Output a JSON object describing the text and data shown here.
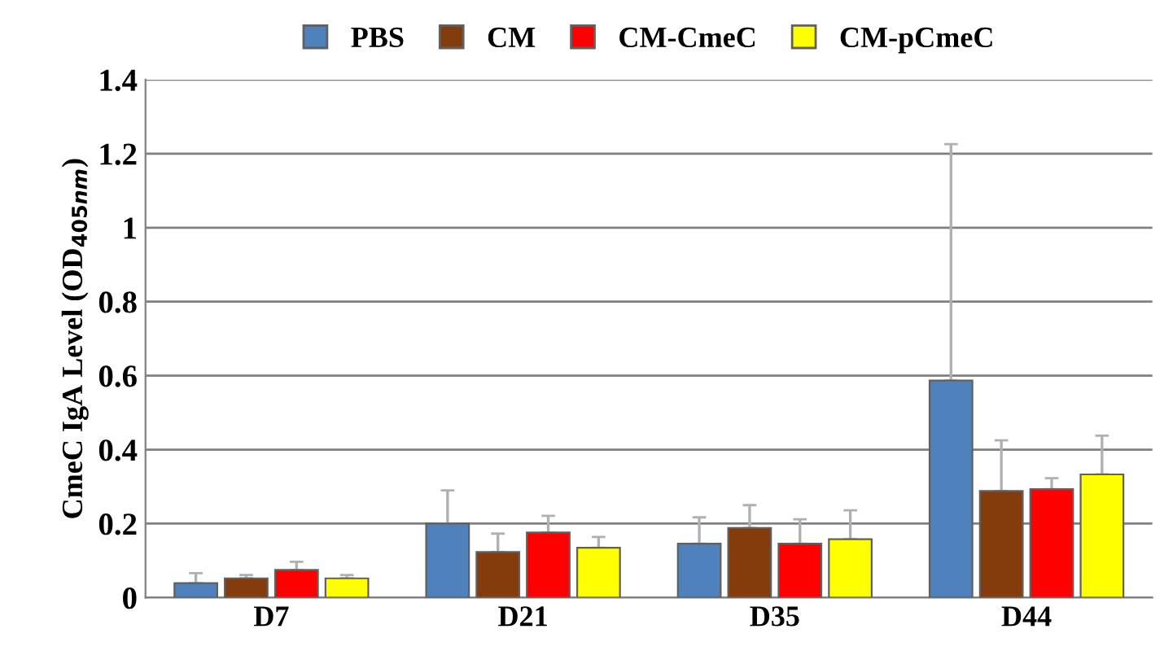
{
  "chart_data": {
    "type": "bar",
    "ylabel": "CmeC IgA Level (OD$_{405nm}$)",
    "categories": [
      "D7",
      "D21",
      "D35",
      "D44"
    ],
    "series": [
      {
        "name": "PBS",
        "color": "#4f81bd",
        "values": [
          0.039,
          0.2,
          0.146,
          0.587
        ],
        "errors": [
          [
            0.039,
            0.066
          ],
          [
            0.2,
            0.29
          ],
          [
            0.146,
            0.217
          ],
          [
            0.587,
            1.226
          ]
        ]
      },
      {
        "name": "CM",
        "color": "#843c0c",
        "values": [
          0.052,
          0.123,
          0.188,
          0.288
        ],
        "errors": [
          [
            0.052,
            0.061
          ],
          [
            0.123,
            0.173
          ],
          [
            0.188,
            0.25
          ],
          [
            0.288,
            0.425
          ]
        ]
      },
      {
        "name": "CM-CmeC",
        "color": "#ff0000",
        "values": [
          0.075,
          0.176,
          0.146,
          0.293
        ],
        "errors": [
          [
            0.075,
            0.097
          ],
          [
            0.176,
            0.221
          ],
          [
            0.146,
            0.212
          ],
          [
            0.293,
            0.323
          ]
        ]
      },
      {
        "name": "CM-pCmeC",
        "color": "#ffff00",
        "values": [
          0.052,
          0.135,
          0.158,
          0.333
        ],
        "errors": [
          [
            0.052,
            0.061
          ],
          [
            0.135,
            0.164
          ],
          [
            0.158,
            0.236
          ],
          [
            0.333,
            0.438
          ]
        ]
      }
    ],
    "ylim": [
      0,
      1.4
    ],
    "yticks": [
      0,
      0.2,
      0.4,
      0.6,
      0.8,
      1,
      1.2,
      1.4
    ],
    "grid": "y",
    "legend": "top"
  }
}
